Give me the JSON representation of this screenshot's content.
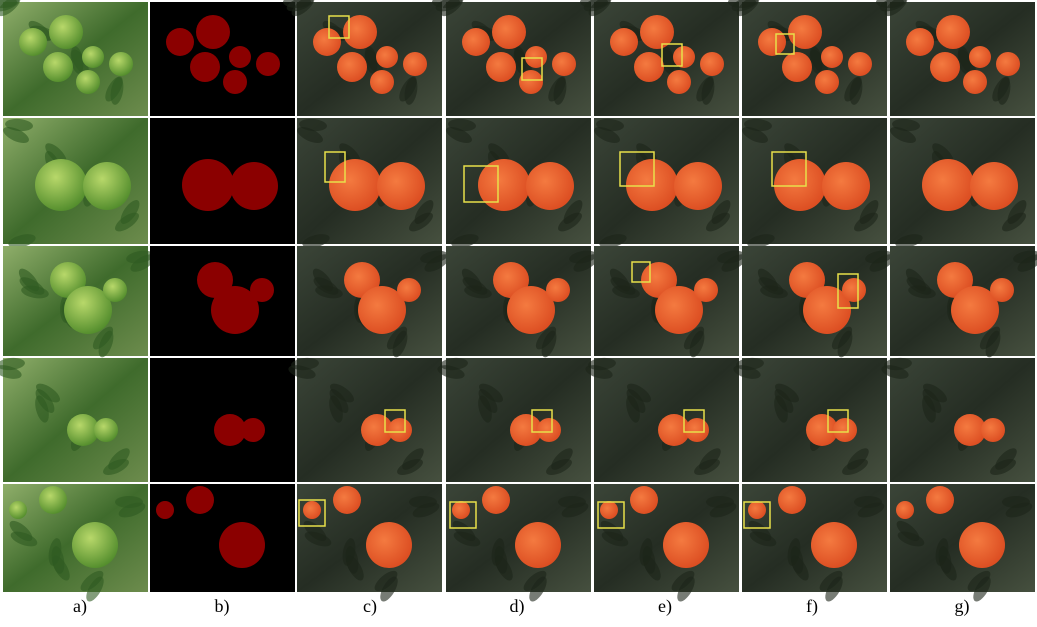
{
  "labels": [
    "a)",
    "b)",
    "c)",
    "d)",
    "e)",
    "f)",
    "g)"
  ]
}
